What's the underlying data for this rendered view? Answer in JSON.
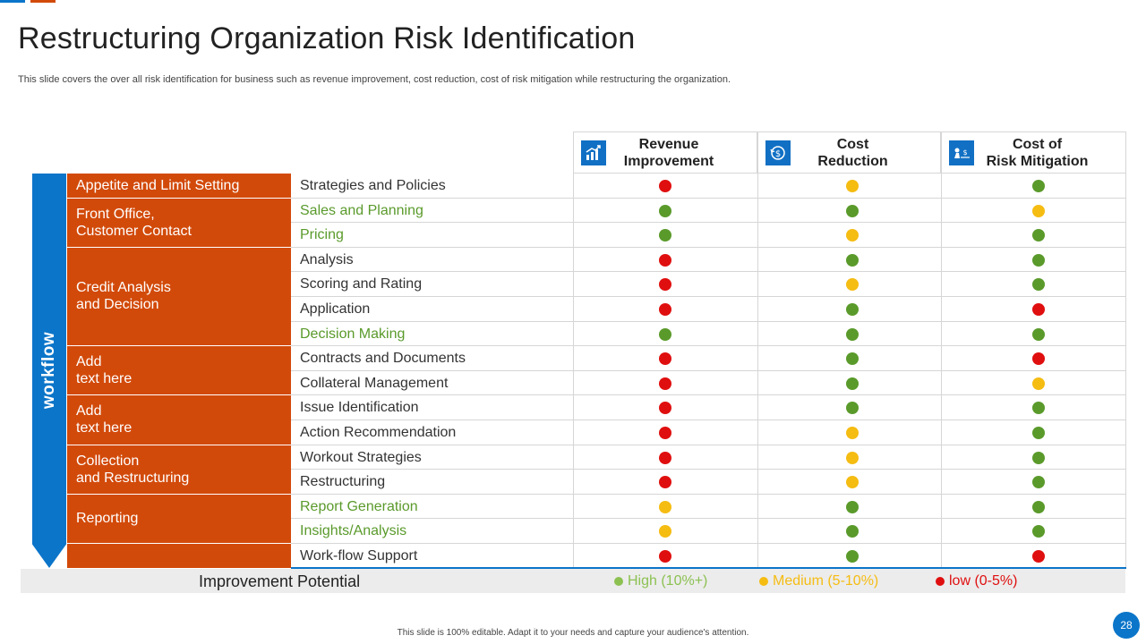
{
  "slide": {
    "title": "Restructuring Organization Risk Identification",
    "subtitle": "This slide covers the over all risk identification for business such as revenue improvement, cost reduction, cost of risk mitigation while restructuring the organization.",
    "footer": "This slide is 100% editable. Adapt it to your needs and capture your audience's attention.",
    "page_number": "28"
  },
  "colors": {
    "high": "#5a9a2b",
    "medium": "#f5bc12",
    "low": "#e00f0f",
    "accent_blue": "#0b75c9",
    "accent_orange": "#d24a0a"
  },
  "columns": [
    {
      "label": "Revenue\nImprovement",
      "icon": "revenue-chart-icon"
    },
    {
      "label": "Cost\nReduction",
      "icon": "dollar-cycle-icon"
    },
    {
      "label": "Cost of\nRisk Mitigation",
      "icon": "risk-money-icon"
    }
  ],
  "workflow_label": "workflow",
  "categories": [
    {
      "label": "Appetite and Limit Setting",
      "rows": 1
    },
    {
      "label": "Front Office,\nCustomer Contact",
      "rows": 2
    },
    {
      "label": "Credit Analysis\nand Decision",
      "rows": 4
    },
    {
      "label": "Add\ntext here",
      "rows": 2
    },
    {
      "label": "Add\ntext here",
      "rows": 2
    },
    {
      "label": "Collection\nand Restructuring",
      "rows": 2
    },
    {
      "label": "Reporting",
      "rows": 2
    },
    {
      "label": "",
      "rows": 1
    }
  ],
  "rows": [
    {
      "task": "Strategies and Policies",
      "highlight": false,
      "ratings": [
        "low",
        "medium",
        "high"
      ]
    },
    {
      "task": "Sales and Planning",
      "highlight": true,
      "ratings": [
        "high",
        "high",
        "medium"
      ]
    },
    {
      "task": "Pricing",
      "highlight": true,
      "ratings": [
        "high",
        "medium",
        "high"
      ]
    },
    {
      "task": "Analysis",
      "highlight": false,
      "ratings": [
        "low",
        "high",
        "high"
      ]
    },
    {
      "task": "Scoring and Rating",
      "highlight": false,
      "ratings": [
        "low",
        "medium",
        "high"
      ]
    },
    {
      "task": "Application",
      "highlight": false,
      "ratings": [
        "low",
        "high",
        "low"
      ]
    },
    {
      "task": "Decision Making",
      "highlight": true,
      "ratings": [
        "high",
        "high",
        "high"
      ]
    },
    {
      "task": "Contracts and Documents",
      "highlight": false,
      "ratings": [
        "low",
        "high",
        "low"
      ]
    },
    {
      "task": "Collateral Management",
      "highlight": false,
      "ratings": [
        "low",
        "high",
        "medium"
      ]
    },
    {
      "task": "Issue Identification",
      "highlight": false,
      "ratings": [
        "low",
        "high",
        "high"
      ]
    },
    {
      "task": "Action Recommendation",
      "highlight": false,
      "ratings": [
        "low",
        "medium",
        "high"
      ]
    },
    {
      "task": "Workout Strategies",
      "highlight": false,
      "ratings": [
        "low",
        "medium",
        "high"
      ]
    },
    {
      "task": "Restructuring",
      "highlight": false,
      "ratings": [
        "low",
        "medium",
        "high"
      ]
    },
    {
      "task": "Report Generation",
      "highlight": true,
      "ratings": [
        "medium",
        "high",
        "high"
      ]
    },
    {
      "task": "Insights/Analysis",
      "highlight": true,
      "ratings": [
        "medium",
        "high",
        "high"
      ]
    },
    {
      "task": "Work-flow Support",
      "highlight": false,
      "ratings": [
        "low",
        "high",
        "low"
      ]
    }
  ],
  "improvement_potential": {
    "label": "Improvement Potential",
    "legend": [
      {
        "key": "high",
        "label": "High (10%+)",
        "color": "#8cc152"
      },
      {
        "key": "medium",
        "label": "Medium (5-10%)",
        "color": "#f5bc12"
      },
      {
        "key": "low",
        "label": "low (0-5%)",
        "color": "#e00f0f"
      }
    ]
  }
}
